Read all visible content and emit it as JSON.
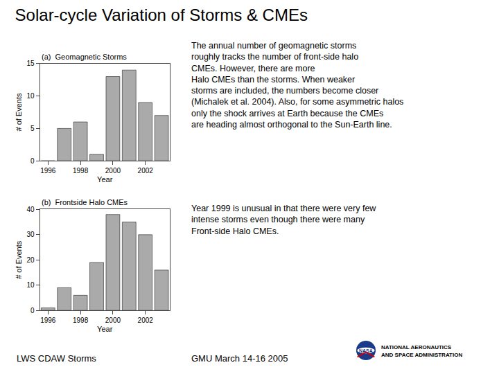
{
  "title": "Solar-cycle Variation of Storms & CMEs",
  "annotations": [
    "The annual number of geomagnetic storms\nroughly tracks the number of front-side halo\nCMEs. However, there are more\nHalo CMEs than the storms. When weaker\nstorms are included, the numbers become closer\n(Michalek et al. 2004). Also, for some asymmetric halos\nonly the shock arrives at Earth because the CMEs\nare heading almost orthogonal to the Sun-Earth line.",
    "Year 1999 is unusual in that there were very few\nintense storms even though there were many\nFront-side Halo CMEs.",
    "LWS CDAW Storms",
    "GMU March 14-16 2005",
    "NASA",
    "NATIONAL AERONAUTICS",
    "AND SPACE ADMINISTRATION"
  ],
  "chart_data": [
    {
      "type": "bar",
      "title": "(a)  Geomagnetic Storms",
      "categories": [
        "1996",
        null,
        "1998",
        null,
        "2000",
        null,
        "2002",
        null
      ],
      "values": [
        0,
        5,
        6,
        1,
        13,
        14,
        9,
        7
      ],
      "color": "#aaaaaa",
      "xlabel": "Year",
      "ylabel": "# of Events",
      "ylim": [
        0,
        15
      ],
      "yticks": [
        0,
        5,
        10,
        15
      ],
      "grid": false
    },
    {
      "type": "bar",
      "title": "(b)  Frontside Halo CMEs",
      "categories": [
        "1996",
        null,
        "1998",
        null,
        "2000",
        null,
        "2002",
        null
      ],
      "values": [
        1,
        9,
        6,
        19,
        38,
        35,
        30,
        16
      ],
      "color": "#aaaaaa",
      "xlabel": "Year",
      "ylabel": "# of Events",
      "ylim": [
        0,
        40
      ],
      "yticks": [
        0,
        10,
        20,
        30,
        40
      ],
      "grid": false
    }
  ]
}
